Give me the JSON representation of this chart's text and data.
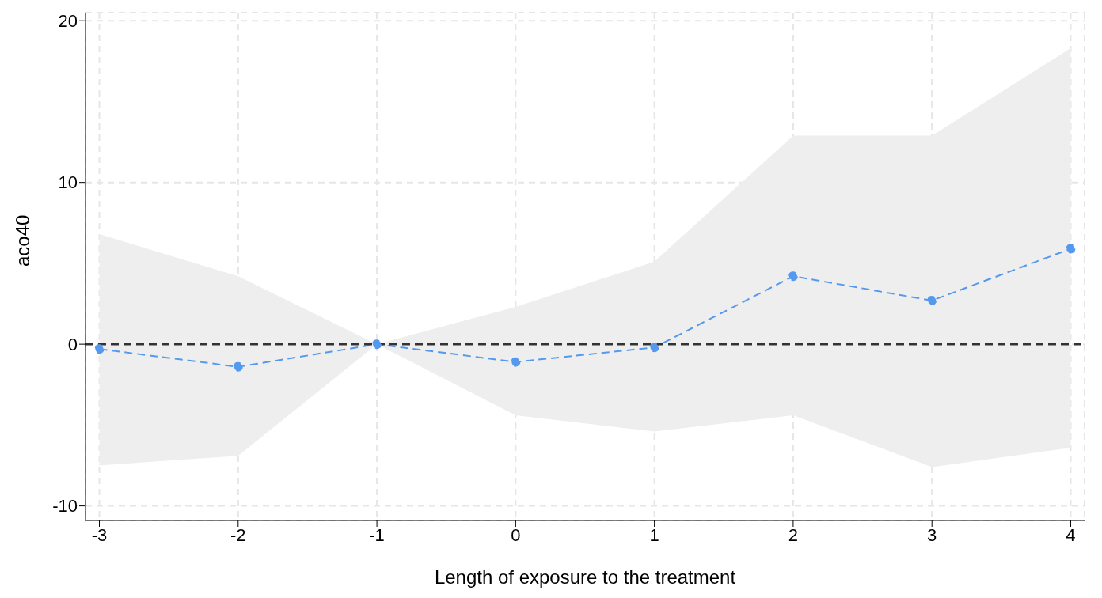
{
  "chart_data": {
    "type": "line",
    "xlabel": "Length of exposure to the treatment",
    "ylabel": "aco40",
    "x": [
      -3,
      -2,
      -1,
      0,
      1,
      2,
      3,
      4
    ],
    "series": [
      {
        "color": "#5599ee",
        "values": [
          -0.3,
          -1.4,
          0,
          -1.1,
          -0.2,
          4.2,
          2.7,
          5.9
        ],
        "lower": [
          -7.5,
          -6.9,
          0,
          -4.4,
          -5.4,
          -4.4,
          -7.6,
          -6.4
        ],
        "upper": [
          6.8,
          4.2,
          0,
          2.3,
          5.1,
          12.9,
          12.9,
          18.3
        ]
      }
    ],
    "xlim": [
      -3.1,
      4.1
    ],
    "xticks": [
      -3,
      -2,
      -1,
      0,
      1,
      2,
      3,
      4
    ],
    "ylim": [
      -10.9,
      20.5
    ],
    "yticks": [
      -10,
      0,
      10,
      20
    ],
    "ref_lines": [
      {
        "axis": "y",
        "value": 0,
        "color": "#333333",
        "line_style": "dashed"
      }
    ],
    "grid": true,
    "marker": "circle",
    "line_style": "dashed",
    "legend": false
  }
}
